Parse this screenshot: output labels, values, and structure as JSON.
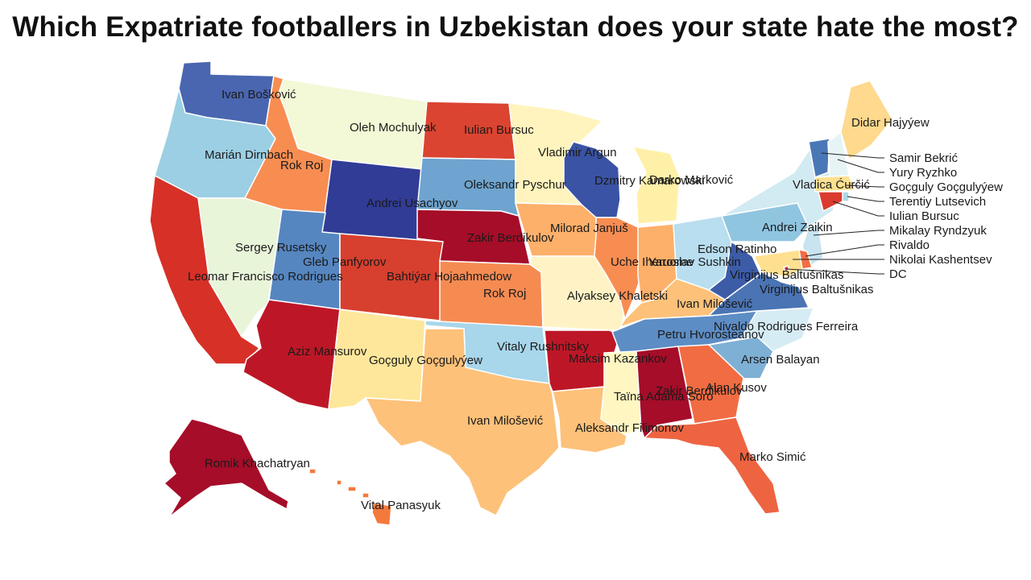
{
  "title": "Which Expatriate footballers in Uzbekistan does your state hate the most?",
  "palette": {
    "dark_red": "#a50026",
    "red": "#d73027",
    "orange": "#f46d43",
    "light_orange": "#fdae61",
    "pale_orange": "#fee090",
    "cream": "#ffffbf",
    "pale_green": "#e9f5d4",
    "pale_blue": "#e0f3f8",
    "light_blue": "#abd9e9",
    "blue": "#74add1",
    "mid_blue": "#4575b4",
    "dark_blue": "#313695"
  },
  "states": [
    {
      "code": "WA",
      "name": "Washington",
      "footballer": "Ivan Bošković",
      "color": "#4a66b0"
    },
    {
      "code": "OR",
      "name": "Oregon",
      "footballer": "Marián Dirnbach",
      "color": "#9ccfe3"
    },
    {
      "code": "CA",
      "name": "California",
      "footballer": "Leomar Francisco Rodrigues",
      "color": "#d73027"
    },
    {
      "code": "NV",
      "name": "Nevada",
      "footballer": "Sergey Rusetsky",
      "color": "#e9f5d9"
    },
    {
      "code": "ID",
      "name": "Idaho",
      "footballer": "Rok Roj",
      "color": "#f88d52"
    },
    {
      "code": "MT",
      "name": "Montana",
      "footballer": "Oleh Mochulyak",
      "color": "#f3f8d6"
    },
    {
      "code": "WY",
      "name": "Wyoming",
      "footballer": "Andrei Usachyov",
      "color": "#313c96"
    },
    {
      "code": "UT",
      "name": "Utah",
      "footballer": "Gleb Panfyorov",
      "color": "#5686c0"
    },
    {
      "code": "AZ",
      "name": "Arizona",
      "footballer": "Aziz Mansurov",
      "color": "#bd1727"
    },
    {
      "code": "CO",
      "name": "Colorado",
      "footballer": "Bahtiýar Hojaahmedow",
      "color": "#d73f2e"
    },
    {
      "code": "NM",
      "name": "New Mexico",
      "footballer": "Goçguly Goçgulyýew",
      "color": "#fee79b"
    },
    {
      "code": "ND",
      "name": "North Dakota",
      "footballer": "Iulian Bursuc",
      "color": "#db4430"
    },
    {
      "code": "SD",
      "name": "South Dakota",
      "footballer": "Oleksandr Pyschur",
      "color": "#6ea4cf"
    },
    {
      "code": "NE",
      "name": "Nebraska",
      "footballer": "Zakir Berdikulov",
      "color": "#a50d29"
    },
    {
      "code": "KS",
      "name": "Kansas",
      "footballer": "Rok Roj",
      "color": "#f68b52"
    },
    {
      "code": "OK",
      "name": "Oklahoma",
      "footballer": "Vitaly Rushnitsky",
      "color": "#a8d6ea"
    },
    {
      "code": "TX",
      "name": "Texas",
      "footballer": "Ivan Milošević",
      "color": "#fdc17a"
    },
    {
      "code": "MN",
      "name": "Minnesota",
      "footballer": "Vladimir Argun",
      "color": "#fff4bd"
    },
    {
      "code": "IA",
      "name": "Iowa",
      "footballer": "Milorad Janjuš",
      "color": "#fdb06a"
    },
    {
      "code": "MO",
      "name": "Missouri",
      "footballer": "Alyaksey Khaletski",
      "color": "#fff3c6"
    },
    {
      "code": "AR",
      "name": "Arkansas",
      "footballer": "Maksim Kazankov",
      "color": "#bd1727"
    },
    {
      "code": "LA",
      "name": "Louisiana",
      "footballer": "Aleksandr Filimonov",
      "color": "#fdc17a"
    },
    {
      "code": "WI",
      "name": "Wisconsin",
      "footballer": "Dzmitry Kamarowski",
      "color": "#3a53a4"
    },
    {
      "code": "IL",
      "name": "Illinois",
      "footballer": "Uche Iheruome",
      "color": "#f88d52"
    },
    {
      "code": "MI",
      "name": "Michigan",
      "footballer": "Darko Marković",
      "color": "#fff0a8"
    },
    {
      "code": "IN",
      "name": "Indiana",
      "footballer": "Yaroslav Sushkin",
      "color": "#fdb06a"
    },
    {
      "code": "OH",
      "name": "Ohio",
      "footballer": "Edson Ratinho",
      "color": "#b8def0"
    },
    {
      "code": "KY",
      "name": "Kentucky",
      "footballer": "Ivan Milošević",
      "color": "#fdc17a"
    },
    {
      "code": "TN",
      "name": "Tennessee",
      "footballer": "Petru Hvorosteanov",
      "color": "#5d8dc5"
    },
    {
      "code": "MS",
      "name": "Mississippi",
      "footballer": "Taïna Adama Soro",
      "color": "#fff6c2"
    },
    {
      "code": "AL",
      "name": "Alabama",
      "footballer": "Zakir Berdikulov",
      "color": "#a50d29"
    },
    {
      "code": "GA",
      "name": "Georgia",
      "footballer": "Alan Kusov",
      "color": "#f26c43"
    },
    {
      "code": "FL",
      "name": "Florida",
      "footballer": "Marko Simić",
      "color": "#ee6441"
    },
    {
      "code": "SC",
      "name": "South Carolina",
      "footballer": "Arsen Balayan",
      "color": "#7eb0d6"
    },
    {
      "code": "NC",
      "name": "North Carolina",
      "footballer": "Nivaldo Rodrigues Ferreira",
      "color": "#d6ecf4"
    },
    {
      "code": "VA",
      "name": "Virginia",
      "footballer": "Virginijus Baltušnikas",
      "color": "#4a74b4"
    },
    {
      "code": "WV",
      "name": "West Virginia",
      "footballer": "Virginijus Baltušnikas",
      "color": "#3d5ca8"
    },
    {
      "code": "PA",
      "name": "Pennsylvania",
      "footballer": "Andrei Zaikin",
      "color": "#90c5e0"
    },
    {
      "code": "NY",
      "name": "New York",
      "footballer": "Vladica Ćurčić",
      "color": "#d2eaf2"
    },
    {
      "code": "VT",
      "name": "Vermont",
      "footballer": "Samir Bekrić",
      "color": "#4a77b6"
    },
    {
      "code": "NH",
      "name": "New Hampshire",
      "footballer": "Yury Ryzhko",
      "color": "#e6f4f5"
    },
    {
      "code": "ME",
      "name": "Maine",
      "footballer": "Didar Hajyýew",
      "color": "#fed98e"
    },
    {
      "code": "MA",
      "name": "Massachusetts",
      "footballer": "Goçguly Goçgulyýew",
      "color": "#fee090"
    },
    {
      "code": "RI",
      "name": "Rhode Island",
      "footballer": "Terentiy Lutsevich",
      "color": "#abd9e9"
    },
    {
      "code": "CT",
      "name": "Connecticut",
      "footballer": "Iulian Bursuc",
      "color": "#db3a2e"
    },
    {
      "code": "NJ",
      "name": "New Jersey",
      "footballer": "Mikalay Ryndzyuk",
      "color": "#c8e4f0"
    },
    {
      "code": "DE",
      "name": "Delaware",
      "footballer": "Rivaldo",
      "color": "#f46d43"
    },
    {
      "code": "MD",
      "name": "Maryland",
      "footballer": "Nikolai Kashentsev",
      "color": "#fee090"
    },
    {
      "code": "DC",
      "name": "District of Columbia",
      "footballer": "DC",
      "color": "#d73027"
    },
    {
      "code": "AK",
      "name": "Alaska",
      "footballer": "Romik Khachatryan",
      "color": "#a50d29"
    },
    {
      "code": "HI",
      "name": "Hawaii",
      "footballer": "Vital Panasyuk",
      "color": "#f4793c"
    }
  ]
}
